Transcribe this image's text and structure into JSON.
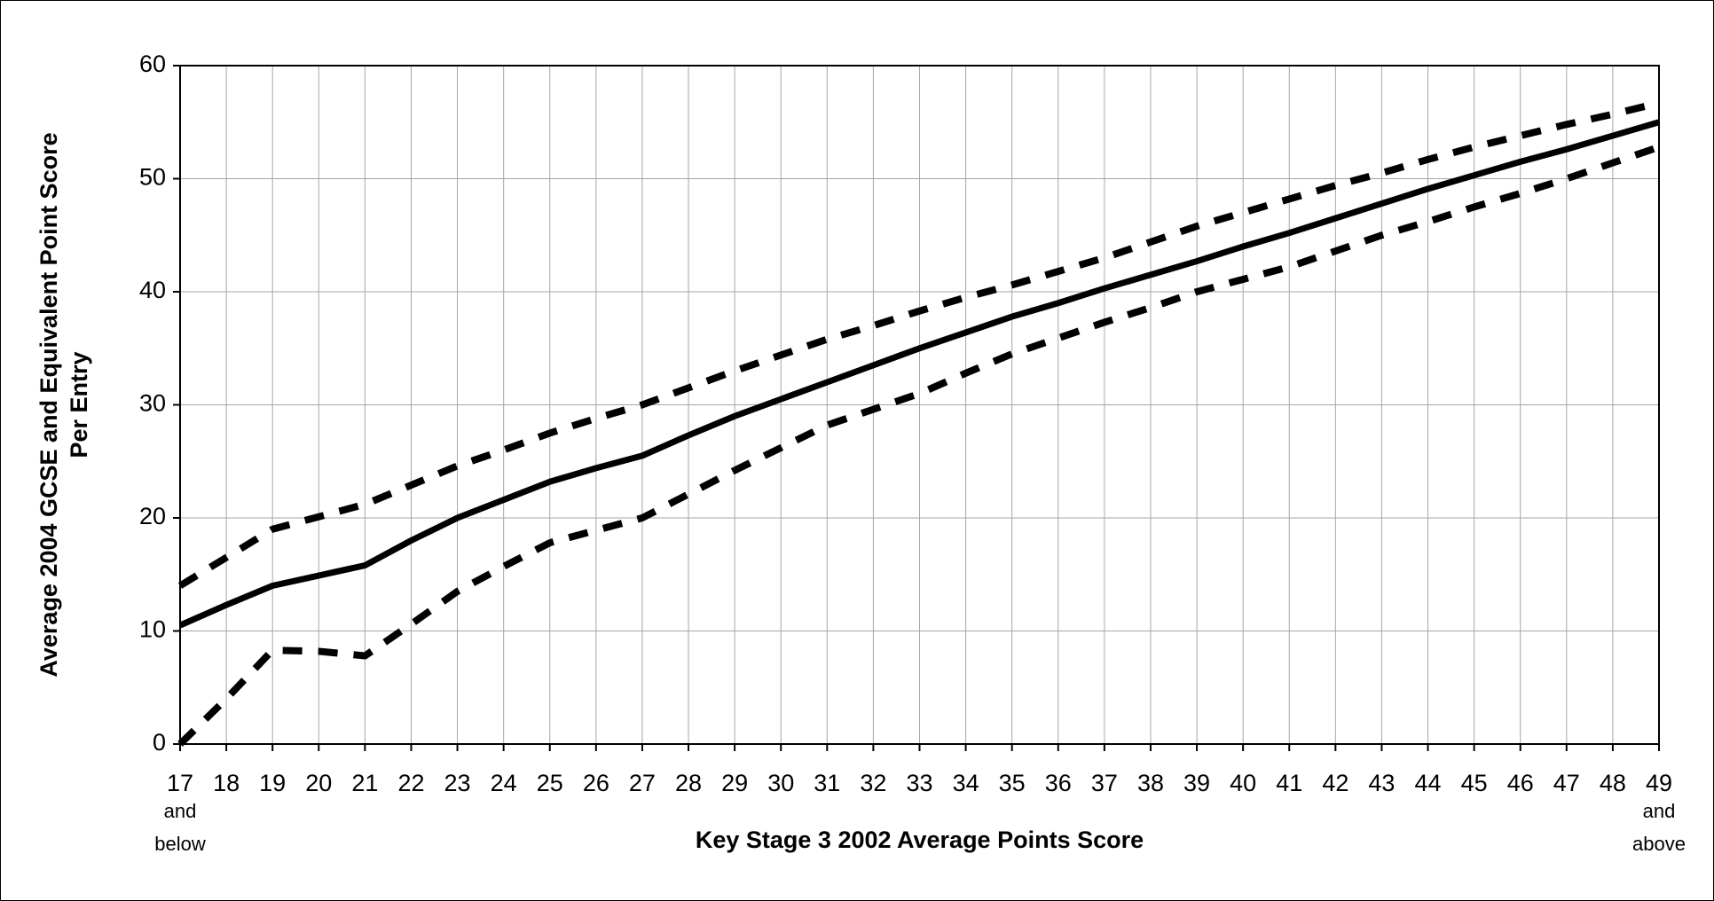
{
  "chart_data": {
    "type": "line",
    "xlabel": "Key Stage 3 2002 Average Points Score",
    "ylabel": [
      "Average 2004 GCSE and Equivalent Point Score",
      "Per Entry"
    ],
    "x": [
      17,
      18,
      19,
      20,
      21,
      22,
      23,
      24,
      25,
      26,
      27,
      28,
      29,
      30,
      31,
      32,
      33,
      34,
      35,
      36,
      37,
      38,
      39,
      40,
      41,
      42,
      43,
      44,
      45,
      46,
      47,
      48,
      49
    ],
    "series": [
      {
        "color": "#000000",
        "dashed": false,
        "values": [
          10.5,
          12.3,
          14,
          14.9,
          15.8,
          18,
          20,
          21.6,
          23.2,
          24.4,
          25.5,
          27.3,
          29,
          30.5,
          32,
          33.5,
          35,
          36.4,
          37.8,
          39,
          40.3,
          41.5,
          42.7,
          44,
          45.2,
          46.5,
          47.8,
          49.1,
          50.3,
          51.5,
          52.6,
          53.8,
          55
        ]
      },
      {
        "color": "#000000",
        "dashed": true,
        "values": [
          14,
          16.5,
          19,
          20.1,
          21.2,
          22.9,
          24.6,
          26,
          27.5,
          28.8,
          30,
          31.5,
          33,
          34.4,
          35.8,
          37,
          38.3,
          39.5,
          40.6,
          41.8,
          43,
          44.4,
          45.8,
          47,
          48.2,
          49.4,
          50.5,
          51.7,
          52.8,
          53.8,
          54.8,
          55.7,
          56.7
        ]
      },
      {
        "color": "#000000",
        "dashed": true,
        "values": [
          0,
          4,
          8.3,
          8.2,
          7.8,
          10.6,
          13.5,
          15.7,
          17.8,
          18.9,
          20,
          22.1,
          24.2,
          26.2,
          28.2,
          29.6,
          31,
          32.8,
          34.5,
          35.9,
          37.3,
          38.6,
          40,
          41.1,
          42.2,
          43.6,
          45,
          46.2,
          47.5,
          48.7,
          50,
          51.4,
          52.8
        ]
      }
    ],
    "xlim": [
      17,
      49
    ],
    "xticks": [
      17,
      18,
      19,
      20,
      21,
      22,
      23,
      24,
      25,
      26,
      27,
      28,
      29,
      30,
      31,
      32,
      33,
      34,
      35,
      36,
      37,
      38,
      39,
      40,
      41,
      42,
      43,
      44,
      45,
      46,
      47,
      48,
      49
    ],
    "x_tick_notes": [
      {
        "value": 17,
        "text": "and below"
      },
      {
        "value": 49,
        "text": "and above"
      }
    ],
    "ylim": [
      0,
      60
    ],
    "yticks": [
      0,
      10,
      20,
      30,
      40,
      50,
      60
    ],
    "grid": true
  }
}
